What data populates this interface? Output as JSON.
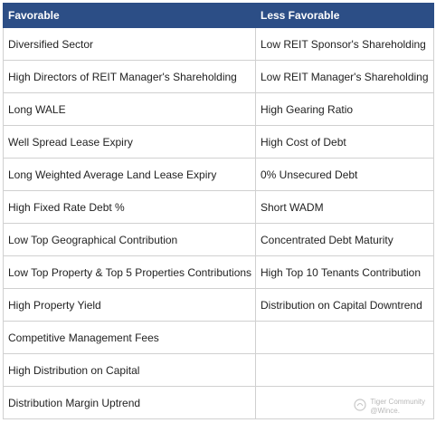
{
  "table": {
    "header": [
      "Favorable",
      "Less Favorable"
    ],
    "rows": [
      [
        "Diversified Sector",
        "Low REIT Sponsor's Shareholding"
      ],
      [
        "High Directors of REIT Manager's Shareholding",
        "Low REIT Manager's Shareholding"
      ],
      [
        "Long WALE",
        "High Gearing Ratio"
      ],
      [
        "Well Spread Lease Expiry",
        "High Cost of Debt"
      ],
      [
        "Long Weighted Average Land Lease Expiry",
        "0% Unsecured Debt"
      ],
      [
        "High Fixed Rate Debt %",
        "Short WADM"
      ],
      [
        "Low Top Geographical Contribution",
        "Concentrated Debt Maturity"
      ],
      [
        "Low Top Property & Top 5 Properties Contributions",
        "High Top 10 Tenants Contribution"
      ],
      [
        "High Property Yield",
        "Distribution on Capital Downtrend"
      ],
      [
        "Competitive Management Fees"
      ],
      [
        "High Distribution on Capital"
      ],
      [
        "Distribution Margin Uptrend"
      ]
    ]
  },
  "watermark": {
    "line1": "Tiger Community",
    "line2": "@Wince."
  }
}
